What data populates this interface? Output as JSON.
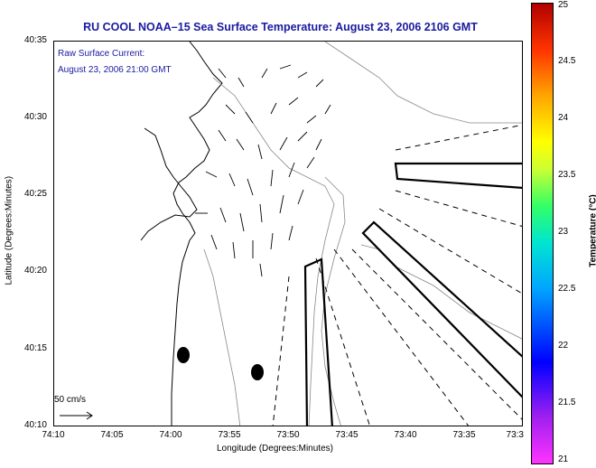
{
  "title": "RU COOL  NOAA–15  Sea Surface Temperature:  August 23, 2006 2106 GMT",
  "current_note": {
    "line1": "Raw Surface Current:",
    "line2": "August 23, 2006 21:00 GMT"
  },
  "scale_label": "50 cm/s",
  "axes": {
    "xlabel": "Longitude (Degrees:Minutes)",
    "ylabel": "Latitude (Degrees:Minutes)",
    "x_ticks": [
      "74:10",
      "74:05",
      "74:00",
      "73:55",
      "73:50",
      "73:45",
      "73:40",
      "73:35",
      "73:3"
    ],
    "y_ticks": [
      "40:35",
      "40:30",
      "40:25",
      "40:20",
      "40:15",
      "40:10"
    ]
  },
  "colorbar": {
    "title": "Temperature (°C)",
    "ticks": [
      "25",
      "24.5",
      "24",
      "23.5",
      "23",
      "22.5",
      "22",
      "21.5",
      "21"
    ]
  }
}
